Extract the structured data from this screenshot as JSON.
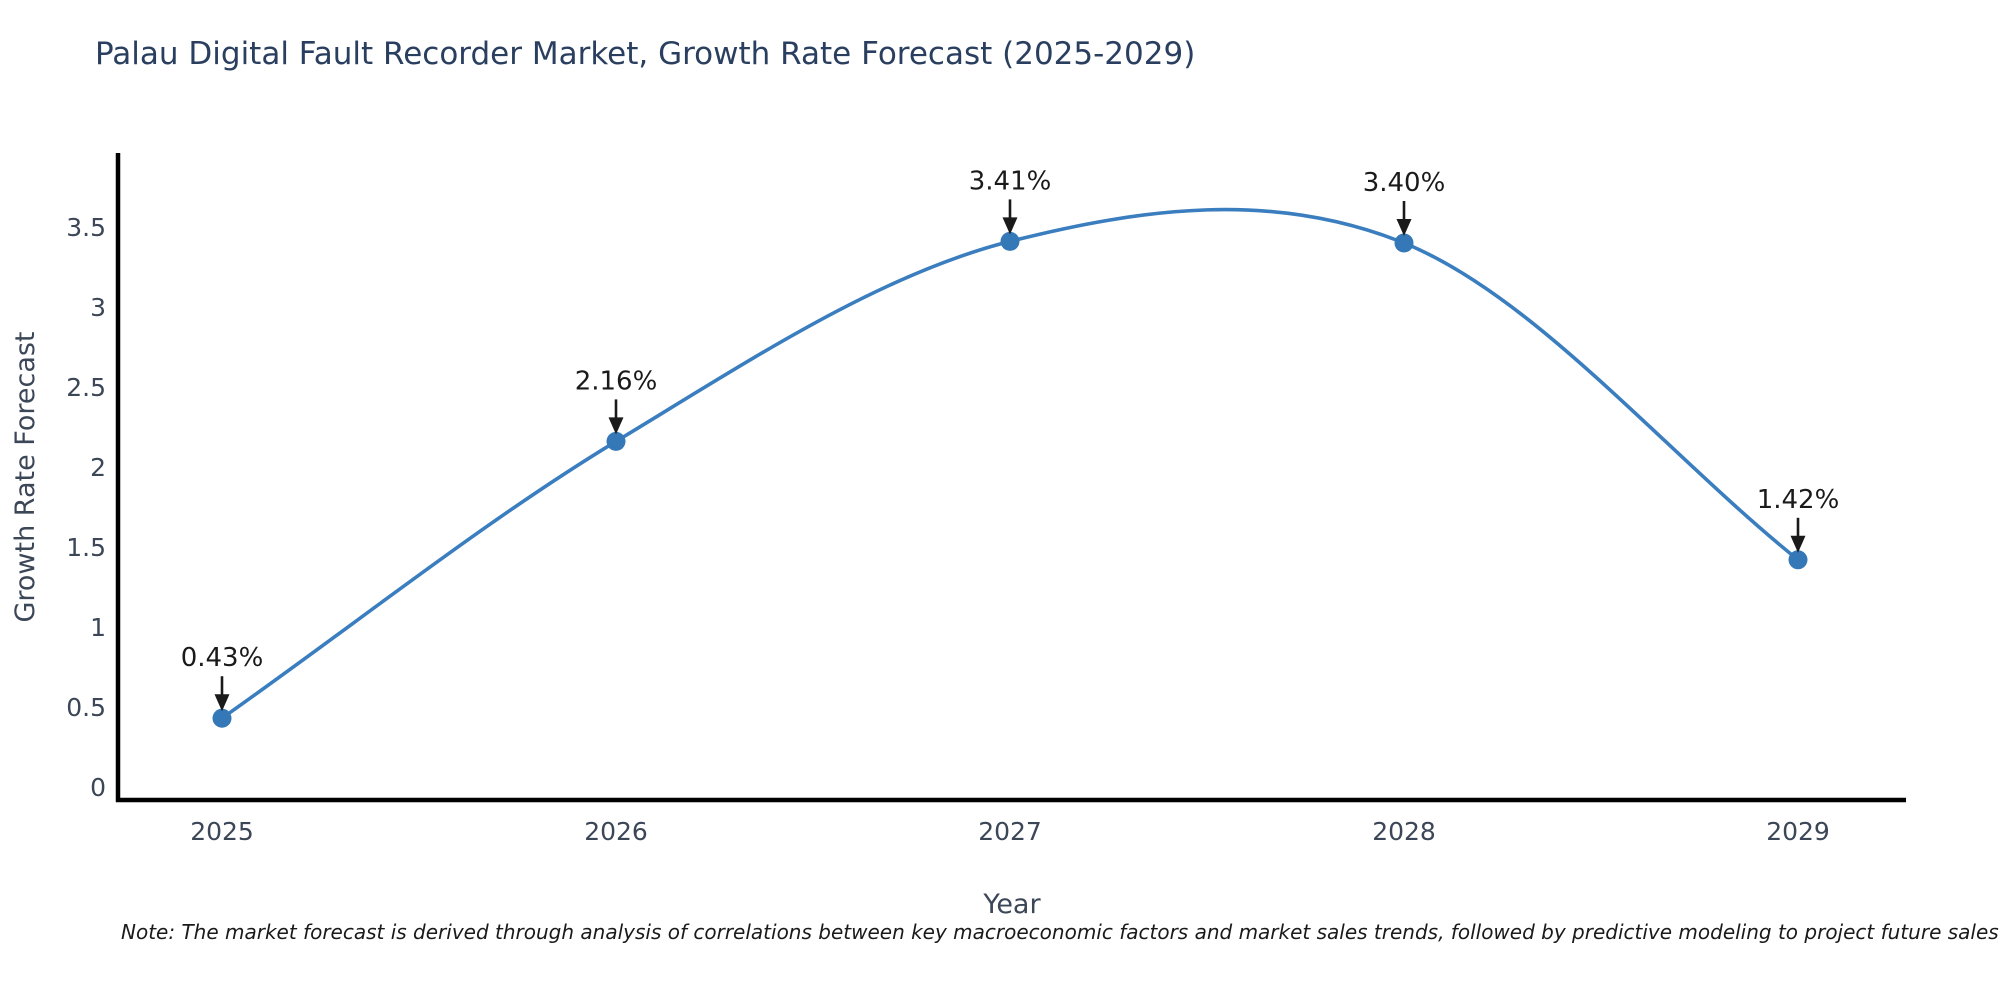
{
  "chart_data": {
    "type": "line",
    "title": "Palau Digital Fault Recorder Market, Growth Rate Forecast (2025-2029)",
    "xlabel": "Year",
    "ylabel": "Growth Rate Forecast",
    "categories": [
      "2025",
      "2026",
      "2027",
      "2028",
      "2029"
    ],
    "values": [
      0.43,
      2.16,
      3.41,
      3.4,
      1.42
    ],
    "point_labels": [
      "0.43%",
      "2.16%",
      "3.41%",
      "3.40%",
      "1.42%"
    ],
    "yticks": [
      0,
      0.5,
      1,
      1.5,
      2,
      2.5,
      3,
      3.5
    ],
    "ylim": [
      0,
      3.95
    ],
    "grid": false,
    "legend": "none",
    "curve": "smooth-spline",
    "annotations": "value labels with black arrows pointing to each marker"
  },
  "note": {
    "text": "Note: The market forecast is derived through analysis of correlations between key macroeconomic factors and market sales trends, followed by predictive modeling to project future sales"
  },
  "colors": {
    "line": "#3a7ebf",
    "marker": "#3578b7",
    "axis": "#000000",
    "title": "#2a3f5f",
    "tick_label": "#3b4657",
    "annotation": "#1a1a1a",
    "background": "#ffffff"
  }
}
